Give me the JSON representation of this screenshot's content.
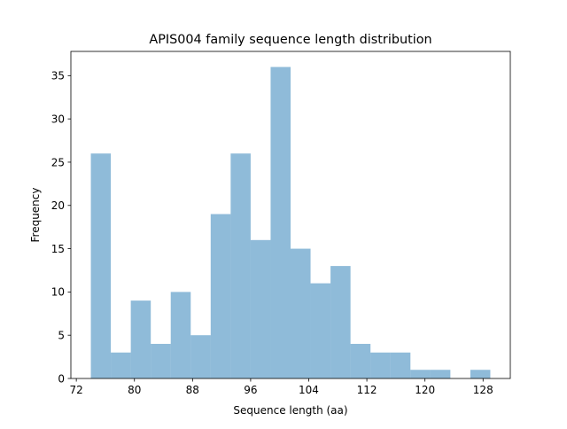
{
  "chart_data": {
    "type": "bar",
    "title": "APIS004 family sequence length distribution",
    "xlabel": "Sequence length (aa)",
    "ylabel": "Frequency",
    "bin_edges": [
      74,
      76.75,
      79.5,
      82.25,
      85,
      87.75,
      90.5,
      93.25,
      96,
      98.75,
      101.5,
      104.25,
      107,
      109.75,
      112.5,
      115.25,
      118,
      120.75,
      123.5,
      126.25,
      129
    ],
    "values": [
      26,
      3,
      9,
      4,
      10,
      5,
      19,
      26,
      16,
      36,
      15,
      11,
      13,
      4,
      3,
      3,
      1,
      1,
      0,
      1
    ],
    "xlim": [
      71.25,
      131.75
    ],
    "ylim": [
      0,
      37.8
    ],
    "xticks": [
      72,
      80,
      88,
      96,
      104,
      112,
      120,
      128
    ],
    "yticks": [
      0,
      5,
      10,
      15,
      20,
      25,
      30,
      35
    ],
    "grid": false,
    "bar_color": "#1f77b4",
    "bar_alpha": 0.5
  }
}
